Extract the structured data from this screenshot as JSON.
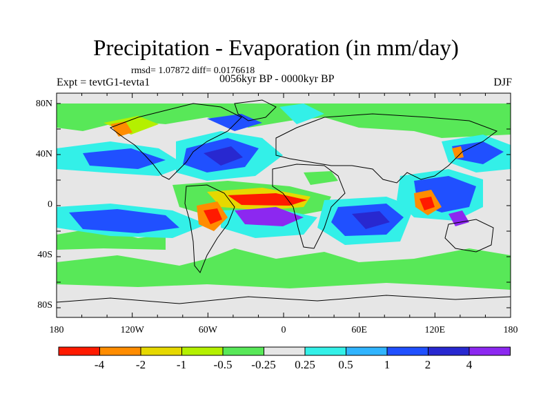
{
  "header": {
    "title": "Precipitation - Evaporation (in mm/day)",
    "stats": "rmsd= 1.07872 diff= 0.0176618",
    "expt": "Expt = tevtG1-tevta1",
    "period": "0056kyr BP - 0000kyr BP",
    "season": "DJF"
  },
  "map": {
    "lat_ticks": [
      "80N",
      "40N",
      "0",
      "40S",
      "80S"
    ],
    "lon_ticks": [
      "180",
      "120W",
      "60W",
      "0",
      "60E",
      "120E",
      "180"
    ]
  },
  "colorbar": {
    "colors": [
      "#ff1a00",
      "#ff8c00",
      "#e6d800",
      "#b4f000",
      "#58e858",
      "#e6e6e6",
      "#33f0e8",
      "#30b4ff",
      "#2050ff",
      "#2828d0",
      "#8c28f0"
    ],
    "labels": [
      "-4",
      "-2",
      "-1",
      "-0.5",
      "-0.25",
      "0.25",
      "0.5",
      "1",
      "2",
      "4"
    ]
  }
}
